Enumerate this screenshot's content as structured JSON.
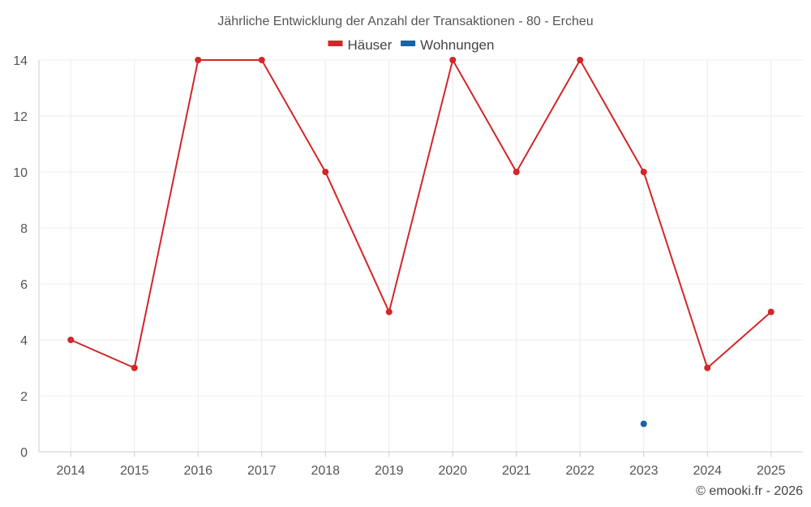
{
  "chart_data": {
    "type": "line",
    "title": "Jährliche Entwicklung der Anzahl der Transaktionen - 80 - Ercheu",
    "categories": [
      "2014",
      "2015",
      "2016",
      "2017",
      "2018",
      "2019",
      "2020",
      "2021",
      "2022",
      "2023",
      "2024",
      "2025"
    ],
    "series": [
      {
        "name": "Häuser",
        "color": "#d32628",
        "values": [
          4,
          3,
          14,
          14,
          10,
          5,
          14,
          10,
          14,
          10,
          3,
          5
        ]
      },
      {
        "name": "Wohnungen",
        "color": "#1565a8",
        "values": [
          null,
          null,
          null,
          null,
          null,
          null,
          null,
          null,
          null,
          1,
          null,
          null
        ]
      }
    ],
    "ylim": [
      0,
      14
    ],
    "yticks": [
      0,
      2,
      4,
      6,
      8,
      10,
      12,
      14
    ],
    "grid": true,
    "legend_position": "top-center",
    "credit": "© emooki.fr - 2026"
  }
}
